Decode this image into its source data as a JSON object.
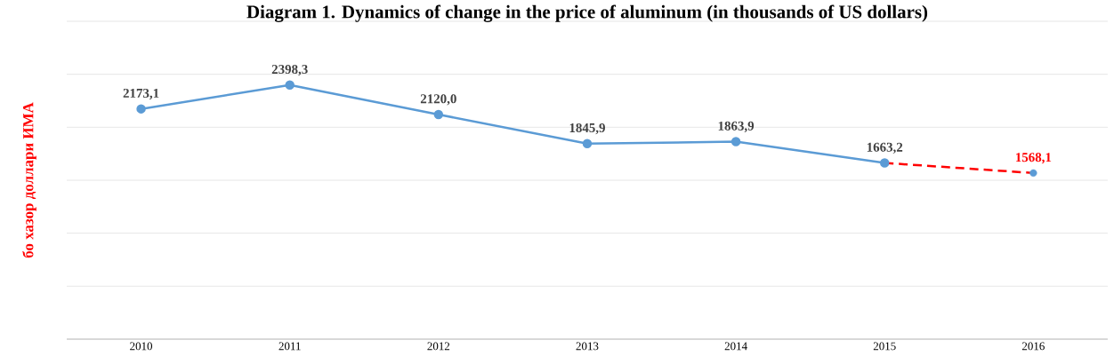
{
  "chart_data": {
    "type": "line",
    "title": "Diagram 1. Dynamics of change in the price of aluminum (in thousands of US dollars)",
    "ylabel": "бо хазор доллари ИМА",
    "categories": [
      "2010",
      "2011",
      "2012",
      "2013",
      "2014",
      "2015",
      "2016"
    ],
    "series": [
      {
        "color": "#5b9bd5",
        "marker": "circle",
        "line_style": "solid",
        "values": [
          2173.1,
          2398.3,
          2120.0,
          1845.9,
          1863.9,
          1663.2,
          null
        ],
        "value_labels": [
          "2173,1",
          "2398,3",
          "2120,0",
          "1845,9",
          "1863,9",
          "1663,2",
          null
        ]
      },
      {
        "color": "#ff0000",
        "marker": "none",
        "line_style": "dashed",
        "values": [
          null,
          null,
          null,
          null,
          null,
          1663.2,
          1568.1
        ],
        "value_labels": [
          null,
          null,
          null,
          null,
          null,
          null,
          "1568,1"
        ]
      },
      {
        "type": "scatter",
        "color": "#5b9bd5",
        "marker": "circle",
        "values": [
          null,
          null,
          null,
          null,
          null,
          null,
          1568.1
        ]
      }
    ],
    "ylim": [
      0,
      3000
    ],
    "yticks": [
      {
        "value": 0,
        "label": null
      },
      {
        "value": 500,
        "label": null
      },
      {
        "value": 1000,
        "label": null
      },
      {
        "value": 1500,
        "label": null
      },
      {
        "value": 2000,
        "label": null
      },
      {
        "value": 2500,
        "label": null
      },
      {
        "value": 3000,
        "label": null
      }
    ],
    "tick_labels": "x",
    "grid": "y"
  }
}
